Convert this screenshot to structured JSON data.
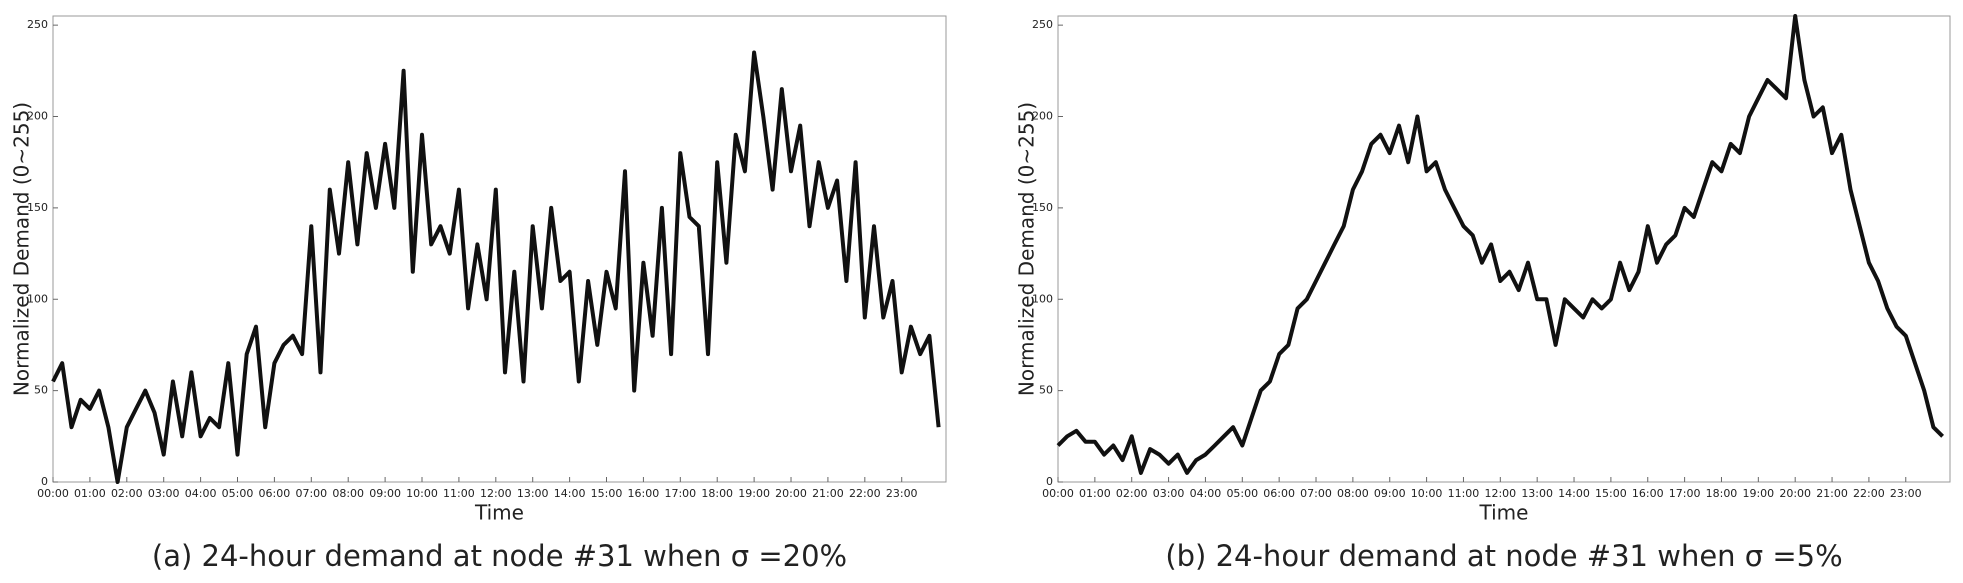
{
  "chart_data": [
    {
      "type": "line",
      "caption": "(a) 24-hour demand at node #31 when σ =20%",
      "xlabel": "Time",
      "ylabel": "Normalized Demand (0~255)",
      "x": [
        0,
        0.25,
        0.5,
        0.75,
        1,
        1.25,
        1.5,
        1.75,
        2,
        2.25,
        2.5,
        2.75,
        3,
        3.25,
        3.5,
        3.75,
        4,
        4.25,
        4.5,
        4.75,
        5,
        5.25,
        5.5,
        5.75,
        6,
        6.25,
        6.5,
        6.75,
        7,
        7.25,
        7.5,
        7.75,
        8,
        8.25,
        8.5,
        8.75,
        9,
        9.25,
        9.5,
        9.75,
        10,
        10.25,
        10.5,
        10.75,
        11,
        11.25,
        11.5,
        11.75,
        12,
        12.25,
        12.5,
        12.75,
        13,
        13.25,
        13.5,
        13.75,
        14,
        14.25,
        14.5,
        14.75,
        15,
        15.25,
        15.5,
        15.75,
        16,
        16.25,
        16.5,
        16.75,
        17,
        17.25,
        17.5,
        17.75,
        18,
        18.25,
        18.5,
        18.75,
        19,
        19.25,
        19.5,
        19.75,
        20,
        20.25,
        20.5,
        20.75,
        21,
        21.25,
        21.5,
        21.75,
        22,
        22.25,
        22.5,
        22.75,
        23,
        23.25,
        23.5,
        23.75,
        24
      ],
      "values": [
        55,
        65,
        30,
        45,
        40,
        50,
        30,
        0,
        30,
        40,
        50,
        38,
        15,
        55,
        25,
        60,
        25,
        35,
        30,
        65,
        15,
        70,
        85,
        30,
        65,
        75,
        80,
        70,
        140,
        60,
        160,
        125,
        175,
        130,
        180,
        150,
        185,
        150,
        225,
        115,
        190,
        130,
        140,
        125,
        160,
        95,
        130,
        100,
        160,
        60,
        115,
        55,
        140,
        95,
        150,
        110,
        115,
        55,
        110,
        75,
        115,
        95,
        170,
        50,
        120,
        80,
        150,
        70,
        180,
        145,
        140,
        70,
        175,
        120,
        190,
        170,
        235,
        200,
        160,
        215,
        170,
        195,
        140,
        175,
        150,
        165,
        110,
        175,
        90,
        140,
        90,
        110,
        60,
        85,
        70,
        80,
        30
      ],
      "color": "#111111",
      "xlim": [
        0,
        24.2
      ],
      "ylim": [
        0,
        255
      ],
      "yticks": [
        0,
        50,
        100,
        150,
        200,
        250
      ],
      "xticks": [
        {
          "value": 0,
          "label": "00:00"
        },
        {
          "value": 1,
          "label": "01:00"
        },
        {
          "value": 2,
          "label": "02:00"
        },
        {
          "value": 3,
          "label": "03:00"
        },
        {
          "value": 4,
          "label": "04:00"
        },
        {
          "value": 5,
          "label": "05:00"
        },
        {
          "value": 6,
          "label": "06:00"
        },
        {
          "value": 7,
          "label": "07:00"
        },
        {
          "value": 8,
          "label": "08:00"
        },
        {
          "value": 9,
          "label": "09:00"
        },
        {
          "value": 10,
          "label": "10:00"
        },
        {
          "value": 11,
          "label": "11:00"
        },
        {
          "value": 12,
          "label": "12:00"
        },
        {
          "value": 13,
          "label": "13:00"
        },
        {
          "value": 14,
          "label": "14:00"
        },
        {
          "value": 15,
          "label": "15:00"
        },
        {
          "value": 16,
          "label": "16:00"
        },
        {
          "value": 17,
          "label": "17:00"
        },
        {
          "value": 18,
          "label": "18:00"
        },
        {
          "value": 19,
          "label": "19:00"
        },
        {
          "value": 20,
          "label": "20:00"
        },
        {
          "value": 21,
          "label": "21:00"
        },
        {
          "value": 22,
          "label": "22:00"
        },
        {
          "value": 23,
          "label": "23:00"
        }
      ]
    },
    {
      "type": "line",
      "caption": "(b) 24-hour demand at node #31 when σ =5%",
      "xlabel": "Time",
      "ylabel": "Normalized Demand (0~255)",
      "x": [
        0,
        0.25,
        0.5,
        0.75,
        1,
        1.25,
        1.5,
        1.75,
        2,
        2.25,
        2.5,
        2.75,
        3,
        3.25,
        3.5,
        3.75,
        4,
        4.25,
        4.5,
        4.75,
        5,
        5.25,
        5.5,
        5.75,
        6,
        6.25,
        6.5,
        6.75,
        7,
        7.25,
        7.5,
        7.75,
        8,
        8.25,
        8.5,
        8.75,
        9,
        9.25,
        9.5,
        9.75,
        10,
        10.25,
        10.5,
        10.75,
        11,
        11.25,
        11.5,
        11.75,
        12,
        12.25,
        12.5,
        12.75,
        13,
        13.25,
        13.5,
        13.75,
        14,
        14.25,
        14.5,
        14.75,
        15,
        15.25,
        15.5,
        15.75,
        16,
        16.25,
        16.5,
        16.75,
        17,
        17.25,
        17.5,
        17.75,
        18,
        18.25,
        18.5,
        18.75,
        19,
        19.25,
        19.5,
        19.75,
        20,
        20.25,
        20.5,
        20.75,
        21,
        21.25,
        21.5,
        21.75,
        22,
        22.25,
        22.5,
        22.75,
        23,
        23.25,
        23.5,
        23.75,
        24
      ],
      "values": [
        20,
        25,
        28,
        22,
        22,
        15,
        20,
        12,
        25,
        5,
        18,
        15,
        10,
        15,
        5,
        12,
        15,
        20,
        25,
        30,
        20,
        35,
        50,
        55,
        70,
        75,
        95,
        100,
        110,
        120,
        130,
        140,
        160,
        170,
        185,
        190,
        180,
        195,
        175,
        200,
        170,
        175,
        160,
        150,
        140,
        135,
        120,
        130,
        110,
        115,
        105,
        120,
        100,
        100,
        75,
        100,
        95,
        90,
        100,
        95,
        100,
        120,
        105,
        115,
        140,
        120,
        130,
        135,
        150,
        145,
        160,
        175,
        170,
        185,
        180,
        200,
        210,
        220,
        215,
        210,
        255,
        220,
        200,
        205,
        180,
        190,
        160,
        140,
        120,
        110,
        95,
        85,
        80,
        65,
        50,
        30,
        25
      ],
      "color": "#111111",
      "xlim": [
        0,
        24.2
      ],
      "ylim": [
        0,
        255
      ],
      "yticks": [
        0,
        50,
        100,
        150,
        200,
        250
      ],
      "xticks": [
        {
          "value": 0,
          "label": "00:00"
        },
        {
          "value": 1,
          "label": "01:00"
        },
        {
          "value": 2,
          "label": "02:00"
        },
        {
          "value": 3,
          "label": "03:00"
        },
        {
          "value": 4,
          "label": "04:00"
        },
        {
          "value": 5,
          "label": "05:00"
        },
        {
          "value": 6,
          "label": "06:00"
        },
        {
          "value": 7,
          "label": "07:00"
        },
        {
          "value": 8,
          "label": "08:00"
        },
        {
          "value": 9,
          "label": "09:00"
        },
        {
          "value": 10,
          "label": "10:00"
        },
        {
          "value": 11,
          "label": "11:00"
        },
        {
          "value": 12,
          "label": "12:00"
        },
        {
          "value": 13,
          "label": "13:00"
        },
        {
          "value": 14,
          "label": "14:00"
        },
        {
          "value": 15,
          "label": "15:00"
        },
        {
          "value": 16,
          "label": "16:00"
        },
        {
          "value": 17,
          "label": "17:00"
        },
        {
          "value": 18,
          "label": "18:00"
        },
        {
          "value": 19,
          "label": "19:00"
        },
        {
          "value": 20,
          "label": "20:00"
        },
        {
          "value": 21,
          "label": "21:00"
        },
        {
          "value": 22,
          "label": "22:00"
        },
        {
          "value": 23,
          "label": "23:00"
        }
      ]
    }
  ]
}
